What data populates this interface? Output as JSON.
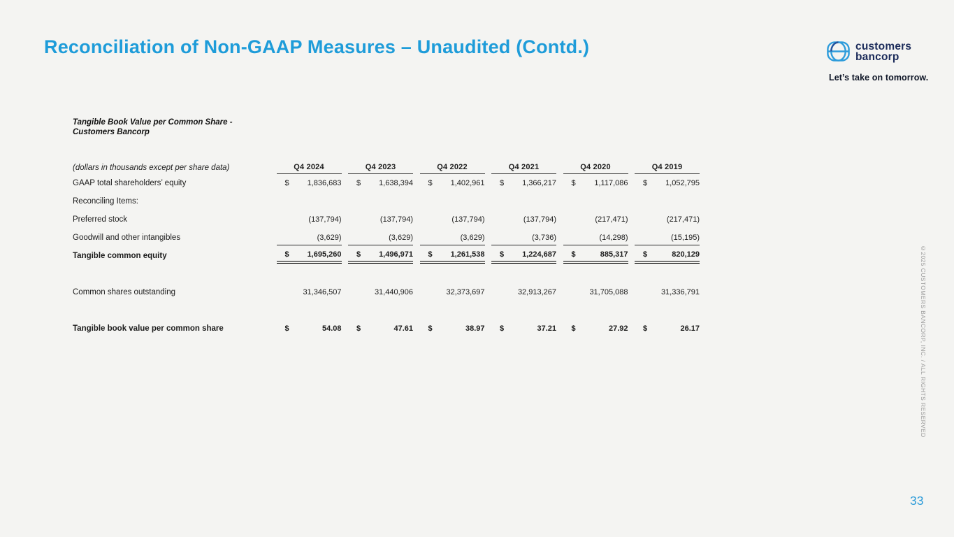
{
  "page": {
    "title": "Reconciliation of Non-GAAP Measures – Unaudited (Contd.)",
    "page_number": "33",
    "copyright_vertical": "©2025 CUSTOMERS BANCORP, INC. / ALL RIGHTS RESERVED"
  },
  "brand": {
    "logo_line1": "customers",
    "logo_line2": "bancorp",
    "tagline": "Let’s take on tomorrow."
  },
  "colors": {
    "accent_blue": "#1E9CD9",
    "logo_navy": "#1B2B5A",
    "logo_icon_blue": "#2E9CDB",
    "background": "#F4F4F2",
    "muted_gray": "#9A9A9A"
  },
  "table": {
    "title_line1": "Tangible Book Value per Common Share -",
    "title_line2": "Customers Bancorp",
    "units_note": "(dollars in thousands except per share data)",
    "currency_symbol": "$",
    "columns": [
      "Q4 2024",
      "Q4 2023",
      "Q4 2022",
      "Q4 2021",
      "Q4 2020",
      "Q4 2019"
    ],
    "rows": [
      {
        "label": "GAAP total shareholders’ equity",
        "dollar": true,
        "values": [
          "1,836,683",
          "1,638,394",
          "1,402,961",
          "1,366,217",
          "1,117,086",
          "1,052,795"
        ]
      },
      {
        "label": "Reconciling Items:",
        "values": []
      },
      {
        "label": "Preferred stock",
        "values": [
          "(137,794)",
          "(137,794)",
          "(137,794)",
          "(137,794)",
          "(217,471)",
          "(217,471)"
        ]
      },
      {
        "label": "Goodwill and other intangibles",
        "underline": true,
        "values": [
          "(3,629)",
          "(3,629)",
          "(3,629)",
          "(3,736)",
          "(14,298)",
          "(15,195)"
        ]
      },
      {
        "label": "Tangible common equity",
        "bold": true,
        "dollar": true,
        "double_underline": true,
        "spacers_after": 1,
        "values": [
          "1,695,260",
          "1,496,971",
          "1,261,538",
          "1,224,687",
          "885,317",
          "820,129"
        ]
      },
      {
        "label": "Common shares outstanding",
        "spacers_after": 1,
        "values": [
          "31,346,507",
          "31,440,906",
          "32,373,697",
          "32,913,267",
          "31,705,088",
          "31,336,791"
        ]
      },
      {
        "label": "Tangible book value per common share",
        "bold": true,
        "dollar": true,
        "values": [
          "54.08",
          "47.61",
          "38.97",
          "37.21",
          "27.92",
          "26.17"
        ]
      }
    ]
  }
}
